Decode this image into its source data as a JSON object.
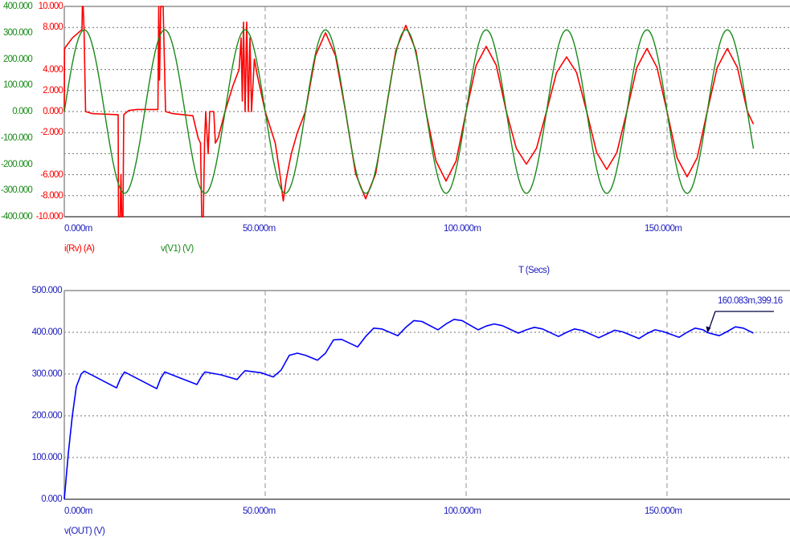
{
  "colors": {
    "current": "#ff0000",
    "voltage_in": "#1a8a1a",
    "voltage_out": "#0000ff",
    "axis_text": "#2020c0",
    "grid": "#808080"
  },
  "x_axis": {
    "label": "T (Secs)",
    "range_ms": [
      0,
      180.6
    ],
    "ticks": [
      "0.000m",
      "50.000m",
      "100.000m",
      "150.000m"
    ],
    "tick_values_ms": [
      0,
      50,
      100,
      150
    ]
  },
  "chart_data": [
    {
      "type": "line",
      "xlabel": "T (Secs)",
      "grid": true,
      "left_axis_voltage": {
        "range": [
          -400,
          400
        ],
        "ticks": [
          "400.000",
          "300.000",
          "200.000",
          "100.000",
          "0.000",
          "-100.000",
          "-200.000",
          "-300.000",
          "-400.000"
        ],
        "tick_values": [
          400,
          300,
          200,
          100,
          0,
          -100,
          -200,
          -300,
          -400
        ]
      },
      "left_axis_current": {
        "range": [
          -10,
          10
        ],
        "ticks": [
          "10.000",
          "8.000",
          "4.000",
          "2.000",
          "0.000",
          "-2.000",
          "-6.000",
          "-8.000",
          "-10.000"
        ],
        "tick_values": [
          10,
          8,
          4,
          2,
          0,
          -2,
          -6,
          -8,
          -10
        ],
        "grid_values": [
          8,
          6,
          4,
          2,
          0,
          -2,
          -4,
          -6,
          -8
        ]
      },
      "series": [
        {
          "name": "i(Rv) (A)",
          "axis": "current",
          "color": "#ff0000",
          "points": [
            [
              0,
              0
            ],
            [
              0.05,
              6
            ],
            [
              2,
              7
            ],
            [
              4.4,
              7.8
            ],
            [
              4.5,
              10
            ],
            [
              4.7,
              10
            ],
            [
              4.9,
              8
            ],
            [
              5.3,
              0
            ],
            [
              7,
              -0.2
            ],
            [
              13.4,
              -0.3
            ],
            [
              13.5,
              -10
            ],
            [
              13.9,
              -10
            ],
            [
              14.1,
              -6
            ],
            [
              14.3,
              -10
            ],
            [
              14.6,
              -10
            ],
            [
              14.8,
              -0.3
            ],
            [
              16,
              0.1
            ],
            [
              18,
              0.2
            ],
            [
              23.3,
              0.2
            ],
            [
              23.5,
              10
            ],
            [
              23.7,
              3
            ],
            [
              24,
              10
            ],
            [
              24.6,
              10
            ],
            [
              25.2,
              0
            ],
            [
              27,
              -0.2
            ],
            [
              32,
              -0.4
            ],
            [
              33.3,
              -2.5
            ],
            [
              33.9,
              -3
            ],
            [
              34.2,
              -10
            ],
            [
              34.6,
              -10
            ],
            [
              34.9,
              -3
            ],
            [
              35.2,
              0
            ],
            [
              35.8,
              -4
            ],
            [
              36.2,
              0
            ],
            [
              37.2,
              0
            ],
            [
              37.6,
              -3
            ],
            [
              38.3,
              -2.5
            ],
            [
              40,
              0
            ],
            [
              42,
              2.5
            ],
            [
              43.5,
              4
            ],
            [
              44,
              7
            ],
            [
              44.3,
              1
            ],
            [
              44.6,
              8.5
            ],
            [
              45,
              0
            ],
            [
              45.4,
              8.5
            ],
            [
              45.8,
              0
            ],
            [
              46.2,
              7
            ],
            [
              46.6,
              0
            ],
            [
              47.3,
              5
            ],
            [
              48,
              3.5
            ],
            [
              50,
              0
            ],
            [
              52.5,
              -3
            ],
            [
              53.5,
              -5.5
            ],
            [
              54.5,
              -8.5
            ],
            [
              55.2,
              -6.5
            ],
            [
              56.5,
              -4
            ],
            [
              58,
              -2
            ],
            [
              60,
              0
            ],
            [
              62.5,
              5.3
            ],
            [
              65,
              7.5
            ],
            [
              67.5,
              5.3
            ],
            [
              70,
              0
            ],
            [
              72.5,
              -5.9
            ],
            [
              75,
              -8.3
            ],
            [
              77.5,
              -5.9
            ],
            [
              80,
              0
            ],
            [
              82.5,
              5.8
            ],
            [
              85,
              8.2
            ],
            [
              87.5,
              5.8
            ],
            [
              90,
              0
            ],
            [
              92.5,
              -4.7
            ],
            [
              95,
              -6.6
            ],
            [
              97.5,
              -4.7
            ],
            [
              100,
              0
            ],
            [
              102.5,
              4.4
            ],
            [
              105,
              6.2
            ],
            [
              107.5,
              4.4
            ],
            [
              110,
              0
            ],
            [
              112.5,
              -3.5
            ],
            [
              115,
              -5.0
            ],
            [
              117.5,
              -3.5
            ],
            [
              120,
              0
            ],
            [
              122.5,
              3.7
            ],
            [
              125,
              5.2
            ],
            [
              127.5,
              3.7
            ],
            [
              130,
              0
            ],
            [
              132.5,
              -3.9
            ],
            [
              135,
              -5.5
            ],
            [
              137.5,
              -3.9
            ],
            [
              140,
              0
            ],
            [
              142.5,
              4.2
            ],
            [
              145,
              6.0
            ],
            [
              147.5,
              4.2
            ],
            [
              150,
              0
            ],
            [
              152.5,
              -4.4
            ],
            [
              155,
              -6.2
            ],
            [
              157.5,
              -4.4
            ],
            [
              160,
              0
            ],
            [
              162.5,
              4.2
            ],
            [
              165,
              6.0
            ],
            [
              167.5,
              4.2
            ],
            [
              170,
              0
            ],
            [
              171.5,
              -1.2
            ]
          ]
        },
        {
          "name": "v(V1) (V)",
          "axis": "voltage",
          "color": "#1a8a1a",
          "waveform": "sine",
          "amplitude": 311,
          "frequency_hz": 50,
          "t_range_ms": [
            0,
            171.5
          ]
        }
      ]
    },
    {
      "type": "line",
      "grid": true,
      "y_axis": {
        "range": [
          0,
          500
        ],
        "ticks": [
          "500.000",
          "400.000",
          "300.000",
          "200.000",
          "100.000",
          "0.000"
        ],
        "tick_values": [
          500,
          400,
          300,
          200,
          100,
          0
        ]
      },
      "series": [
        {
          "name": "v(OUT) (V)",
          "color": "#0000ff",
          "points": [
            [
              0,
              0
            ],
            [
              1,
              110
            ],
            [
              2,
              200
            ],
            [
              3,
              270
            ],
            [
              4.2,
              300
            ],
            [
              5,
              307
            ],
            [
              8,
              292
            ],
            [
              13,
              267
            ],
            [
              14,
              290
            ],
            [
              15,
              305
            ],
            [
              19,
              285
            ],
            [
              23,
              265
            ],
            [
              24,
              290
            ],
            [
              25,
              305
            ],
            [
              29,
              290
            ],
            [
              33,
              275
            ],
            [
              34,
              292
            ],
            [
              35,
              305
            ],
            [
              39,
              298
            ],
            [
              43,
              287
            ],
            [
              44,
              298
            ],
            [
              45,
              308
            ],
            [
              49,
              303
            ],
            [
              52,
              293
            ],
            [
              54,
              310
            ],
            [
              56,
              345
            ],
            [
              58,
              350
            ],
            [
              60,
              345
            ],
            [
              63,
              333
            ],
            [
              65,
              350
            ],
            [
              67,
              382
            ],
            [
              69,
              383
            ],
            [
              73,
              365
            ],
            [
              75,
              390
            ],
            [
              77,
              410
            ],
            [
              79,
              408
            ],
            [
              83,
              392
            ],
            [
              85,
              412
            ],
            [
              87,
              428
            ],
            [
              89,
              426
            ],
            [
              93,
              406
            ],
            [
              95,
              420
            ],
            [
              97,
              431
            ],
            [
              99,
              428
            ],
            [
              103,
              406
            ],
            [
              105,
              415
            ],
            [
              107,
              420
            ],
            [
              109,
              416
            ],
            [
              113,
              398
            ],
            [
              115,
              406
            ],
            [
              117,
              412
            ],
            [
              119,
              408
            ],
            [
              123,
              390
            ],
            [
              125,
              400
            ],
            [
              127,
              408
            ],
            [
              129,
              404
            ],
            [
              133,
              387
            ],
            [
              135,
              396
            ],
            [
              137,
              405
            ],
            [
              139,
              401
            ],
            [
              143,
              385
            ],
            [
              145,
              397
            ],
            [
              147,
              406
            ],
            [
              149,
              402
            ],
            [
              153,
              388
            ],
            [
              155,
              400
            ],
            [
              157,
              410
            ],
            [
              159,
              406
            ],
            [
              160.083,
              399.16
            ],
            [
              163,
              392
            ],
            [
              165,
              402
            ],
            [
              167,
              413
            ],
            [
              169,
              410
            ],
            [
              171.5,
              398
            ]
          ]
        }
      ],
      "annotations": [
        {
          "text": "160.083m,399.16",
          "x_ms": 160.083,
          "y": 399.16
        }
      ]
    }
  ]
}
